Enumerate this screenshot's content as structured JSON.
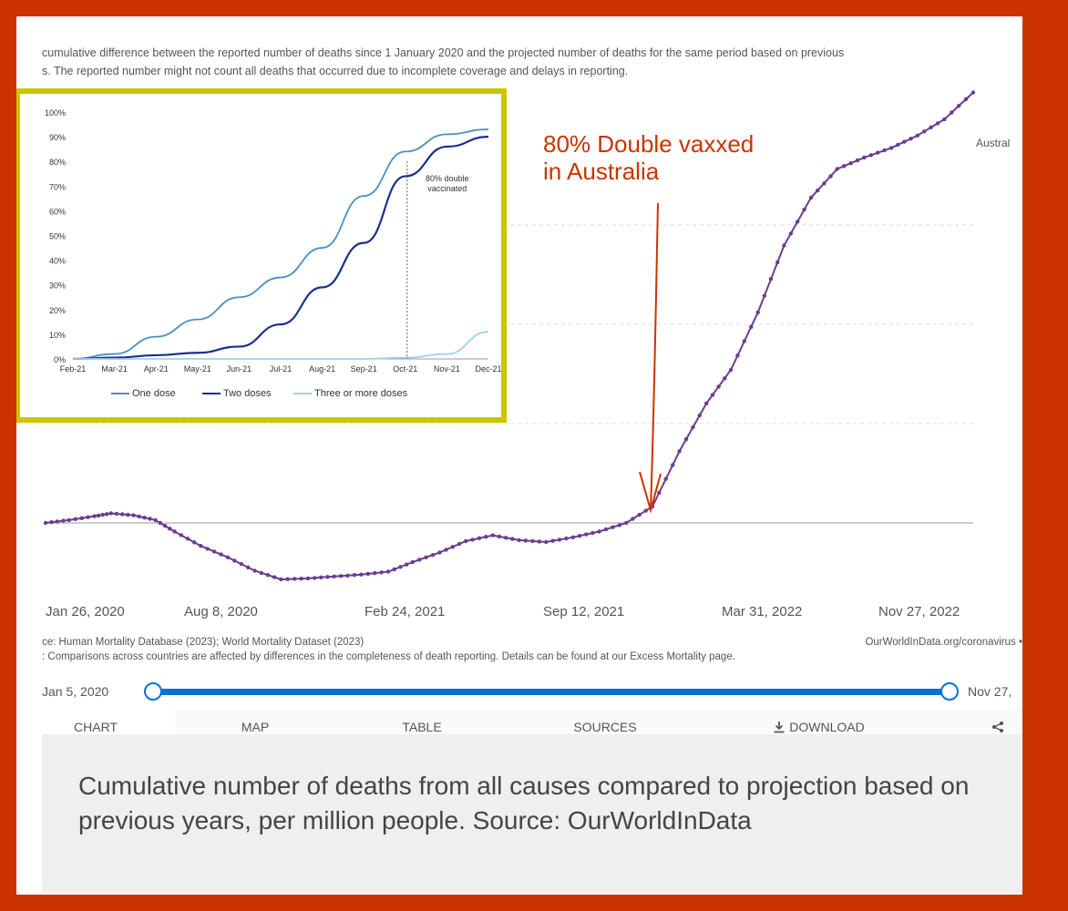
{
  "intro": {
    "line1": "cumulative difference between the reported number of deaths since 1 January 2020 and the projected number of deaths for the same period based on previous",
    "line2": "s. The reported number might not count all deaths that occurred due to incomplete coverage and delays in reporting."
  },
  "annotation": {
    "line1": "80% Double vaxxed",
    "line2": "in Australia",
    "color": "#cc3300"
  },
  "footer": {
    "source": "ce: Human Mortality Database (2023); World Mortality Dataset (2023)",
    "url": "OurWorldInData.org/coronavirus •",
    "note": ": Comparisons across countries are affected by differences in the completeness of death reporting. Details can be found at our Excess Mortality page."
  },
  "slider": {
    "start_label": "Jan 5, 2020",
    "end_label": "Nov 27,",
    "start_value": 0.0,
    "end_value": 1.0,
    "color": "#0a6fd6"
  },
  "tabs": [
    {
      "label": "CHART",
      "icon": ""
    },
    {
      "label": "MAP",
      "icon": ""
    },
    {
      "label": "TABLE",
      "icon": ""
    },
    {
      "label": "SOURCES",
      "icon": ""
    },
    {
      "label": "DOWNLOAD",
      "icon": "download-icon"
    },
    {
      "label": "",
      "icon": "share-icon"
    }
  ],
  "caption": "Cumulative number of deaths from all causes compared to projection based on previous years, per million people. Source: OurWorldInData",
  "chart_data": [
    {
      "type": "line",
      "title": "",
      "x_ticks": [
        "Jan 26, 2020",
        "Aug 8, 2020",
        "Feb 24, 2021",
        "Sep 12, 2021",
        "Mar 31, 2022",
        "Nov 27, 2022"
      ],
      "series": [
        {
          "name": "Austral",
          "color": "#6a3d8f",
          "x": [
            "2020-01-05",
            "2020-02-01",
            "2020-03-01",
            "2020-03-20",
            "2020-04-15",
            "2020-05-10",
            "2020-06-01",
            "2020-07-01",
            "2020-08-01",
            "2020-09-01",
            "2020-10-01",
            "2020-11-01",
            "2020-12-01",
            "2021-01-01",
            "2021-02-01",
            "2021-03-01",
            "2021-04-01",
            "2021-05-01",
            "2021-06-01",
            "2021-07-01",
            "2021-08-01",
            "2021-09-01",
            "2021-10-01",
            "2021-11-01",
            "2021-12-01",
            "2022-01-01",
            "2022-02-01",
            "2022-03-01",
            "2022-04-01",
            "2022-05-01",
            "2022-06-01",
            "2022-07-01",
            "2022-08-01",
            "2022-09-01",
            "2022-10-01",
            "2022-11-01",
            "2022-12-04"
          ],
          "y": [
            0,
            3,
            7,
            10,
            8,
            3,
            -9,
            -24,
            -36,
            -50,
            -59,
            -58,
            -56,
            -54,
            -51,
            -41,
            -31,
            -19,
            -13,
            -18,
            -20,
            -15,
            -9,
            0,
            17,
            75,
            125,
            160,
            220,
            290,
            340,
            370,
            382,
            392,
            405,
            422,
            450
          ]
        }
      ]
    },
    {
      "type": "line",
      "title": "",
      "annotation": "80% double vaccinated",
      "annotation_x": "Oct-21",
      "categories": [
        "Feb-21",
        "Mar-21",
        "Apr-21",
        "May-21",
        "Jun-21",
        "Jul-21",
        "Aug-21",
        "Sep-21",
        "Oct-21",
        "Nov-21",
        "Dec-21"
      ],
      "y_ticks": [
        "0%",
        "10%",
        "20%",
        "30%",
        "40%",
        "50%",
        "60%",
        "70%",
        "80%",
        "90%",
        "100%"
      ],
      "ylim": [
        0,
        100
      ],
      "legend": "bottom",
      "series": [
        {
          "name": "One dose",
          "color": "#4a8fc2",
          "values": [
            0,
            2,
            9,
            16,
            25,
            33,
            45,
            66,
            84,
            91,
            93
          ]
        },
        {
          "name": "Two doses",
          "color": "#1a2f8f",
          "values": [
            0,
            0.5,
            1.5,
            2.5,
            5,
            14,
            29,
            47,
            74,
            86,
            90
          ]
        },
        {
          "name": "Three or more doses",
          "color": "#9fd0ea",
          "values": [
            0,
            0,
            0,
            0,
            0,
            0,
            0,
            0,
            0.5,
            2,
            11
          ]
        }
      ]
    }
  ]
}
